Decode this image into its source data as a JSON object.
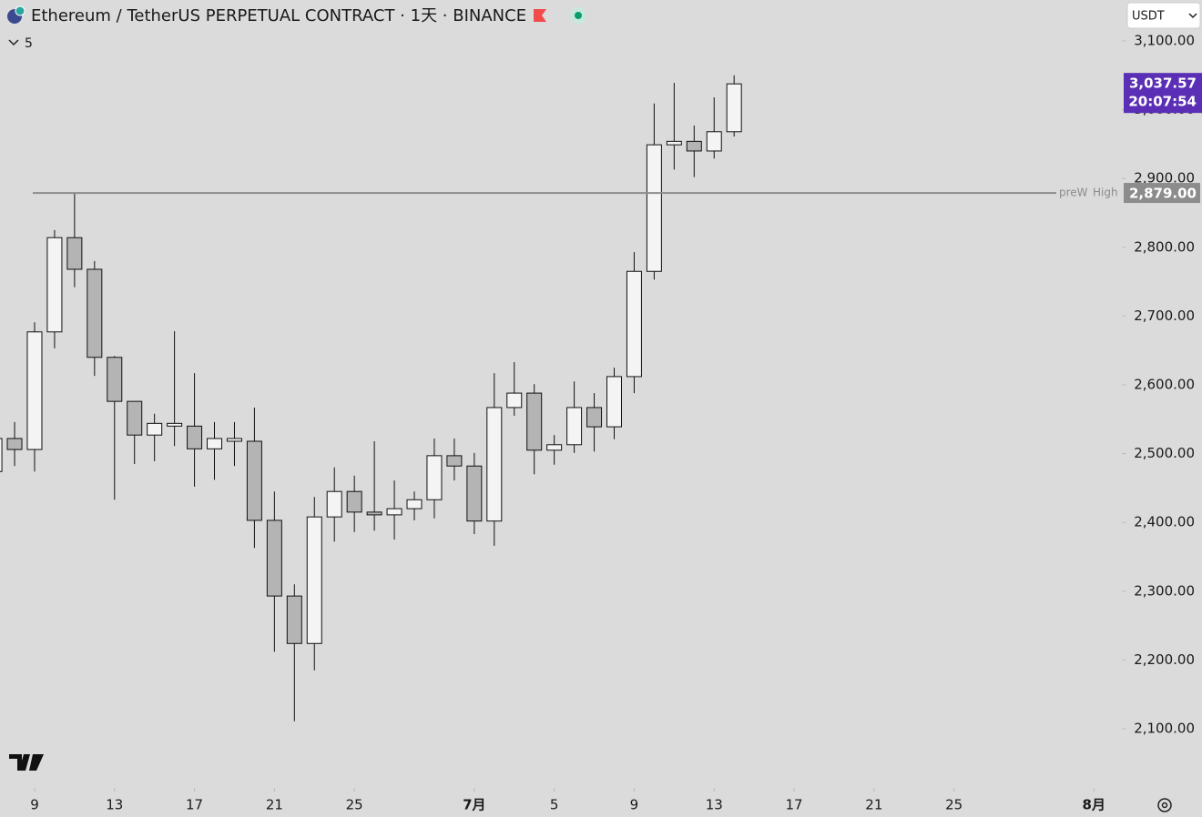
{
  "header": {
    "title": "Ethereum / TetherUS PERPETUAL CONTRACT · 1天 · BINANCE",
    "indicator_count": "5",
    "currency": "USDT"
  },
  "chart_data": {
    "type": "candlestick",
    "x": [
      0,
      1,
      2,
      3,
      4,
      5,
      6,
      7,
      8,
      9,
      10,
      11,
      12,
      13,
      14,
      15,
      16,
      17,
      18,
      19,
      20,
      21,
      22,
      23,
      24,
      25,
      26,
      27,
      28,
      29,
      30,
      31,
      32,
      33,
      34,
      35,
      36,
      37
    ],
    "open": [
      2474,
      2522,
      2506,
      2677,
      2814,
      2768,
      2640,
      2576,
      2527,
      2540,
      2540,
      2507,
      2518,
      2518,
      2403,
      2293,
      2224,
      2408,
      2445,
      2415,
      2411,
      2420,
      2433,
      2497,
      2482,
      2402,
      2567,
      2588,
      2505,
      2513,
      2567,
      2539,
      2612,
      2765,
      2949,
      2954,
      2940,
      2968
    ],
    "high": [
      2530,
      2546,
      2691,
      2825,
      2879,
      2780,
      2642,
      2576,
      2558,
      2678,
      2617,
      2546,
      2546,
      2567,
      2445,
      2310,
      2437,
      2480,
      2468,
      2518,
      2461,
      2445,
      2522,
      2522,
      2501,
      2617,
      2633,
      2601,
      2527,
      2605,
      2588,
      2625,
      2793,
      3009,
      3039,
      2977,
      3018,
      3050
    ],
    "low": [
      2465,
      2482,
      2474,
      2653,
      2742,
      2613,
      2433,
      2485,
      2489,
      2511,
      2452,
      2462,
      2482,
      2363,
      2212,
      2111,
      2185,
      2372,
      2386,
      2388,
      2375,
      2403,
      2406,
      2461,
      2383,
      2366,
      2555,
      2470,
      2484,
      2501,
      2503,
      2521,
      2588,
      2753,
      2913,
      2902,
      2929,
      2961
    ],
    "close": [
      2522,
      2506,
      2677,
      2814,
      2768,
      2640,
      2576,
      2527,
      2544,
      2544,
      2507,
      2522,
      2522,
      2403,
      2293,
      2224,
      2408,
      2445,
      2415,
      2411,
      2420,
      2433,
      2497,
      2482,
      2402,
      2567,
      2588,
      2505,
      2513,
      2567,
      2539,
      2612,
      2765,
      2949,
      2954,
      2940,
      2968,
      3037.57
    ],
    "up_color": "#f4f4f4",
    "down_color": "#b4b4b4",
    "wick_color": "#111111",
    "xlim": [
      0.27,
      56.4
    ],
    "xticks": [
      {
        "value": 2,
        "label": "9"
      },
      {
        "value": 6,
        "label": "13"
      },
      {
        "value": 10,
        "label": "17"
      },
      {
        "value": 14,
        "label": "21"
      },
      {
        "value": 18,
        "label": "25"
      },
      {
        "value": 24,
        "label": "7月"
      },
      {
        "value": 28,
        "label": "5"
      },
      {
        "value": 32,
        "label": "9"
      },
      {
        "value": 36,
        "label": "13"
      },
      {
        "value": 40,
        "label": "17"
      },
      {
        "value": 44,
        "label": "21"
      },
      {
        "value": 48,
        "label": "25"
      },
      {
        "value": 55,
        "label": "8月"
      }
    ],
    "ylim": [
      2022,
      3159.5
    ],
    "yticks": [
      {
        "value": 2100,
        "label": "2,100.00"
      },
      {
        "value": 2200,
        "label": "2,200.00"
      },
      {
        "value": 2300,
        "label": "2,300.00"
      },
      {
        "value": 2400,
        "label": "2,400.00"
      },
      {
        "value": 2500,
        "label": "2,500.00"
      },
      {
        "value": 2600,
        "label": "2,600.00"
      },
      {
        "value": 2700,
        "label": "2,700.00"
      },
      {
        "value": 2800,
        "label": "2,800.00"
      },
      {
        "value": 2900,
        "label": "2,900.00"
      },
      {
        "value": 3000,
        "label": "3,000.00"
      },
      {
        "value": 3100,
        "label": "3,100.00"
      }
    ],
    "level": {
      "name": "preW",
      "label": "High",
      "price": {
        "value": 2879,
        "label": "2,879.00"
      },
      "color": "#8c8c8c"
    },
    "last_price": {
      "value": 3037.57,
      "label": "3,037.57"
    },
    "last_price_color": "#5b2fb5",
    "countdown": "20:07:54"
  }
}
